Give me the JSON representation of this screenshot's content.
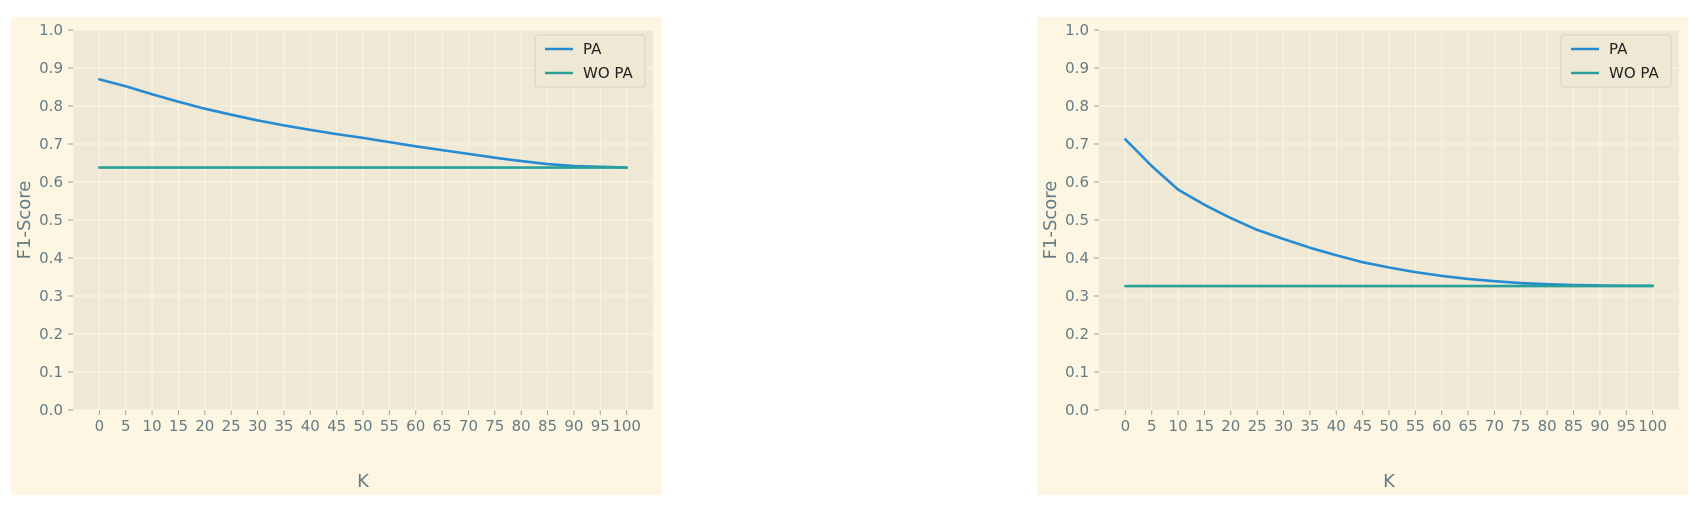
{
  "chart_data": [
    {
      "type": "line",
      "xlabel": "K",
      "ylabel": "F1-Score",
      "xlim": [
        -5,
        105
      ],
      "ylim": [
        0.0,
        1.0
      ],
      "xticks": [
        0,
        5,
        10,
        15,
        20,
        25,
        30,
        35,
        40,
        45,
        50,
        55,
        60,
        65,
        70,
        75,
        80,
        85,
        90,
        95,
        100
      ],
      "yticks": [
        "0.0",
        "0.1",
        "0.2",
        "0.3",
        "0.4",
        "0.5",
        "0.6",
        "0.7",
        "0.8",
        "0.9",
        "1.0"
      ],
      "grid": true,
      "legend_position": "top-right",
      "x": [
        0,
        5,
        10,
        15,
        20,
        25,
        30,
        35,
        40,
        45,
        50,
        55,
        60,
        65,
        70,
        75,
        80,
        85,
        90,
        95,
        100
      ],
      "series": [
        {
          "name": "PA",
          "color": "#268bd2",
          "values": [
            0.87,
            0.852,
            0.831,
            0.811,
            0.793,
            0.777,
            0.762,
            0.749,
            0.737,
            0.726,
            0.716,
            0.705,
            0.694,
            0.684,
            0.674,
            0.664,
            0.655,
            0.647,
            0.642,
            0.64,
            0.638
          ]
        },
        {
          "name": "WO PA",
          "color": "#2aa198",
          "values": [
            0.638,
            0.638,
            0.638,
            0.638,
            0.638,
            0.638,
            0.638,
            0.638,
            0.638,
            0.638,
            0.638,
            0.638,
            0.638,
            0.638,
            0.638,
            0.638,
            0.638,
            0.638,
            0.638,
            0.638,
            0.638
          ]
        }
      ]
    },
    {
      "type": "line",
      "xlabel": "K",
      "ylabel": "F1-Score",
      "xlim": [
        -5,
        105
      ],
      "ylim": [
        0.0,
        1.0
      ],
      "xticks": [
        0,
        5,
        10,
        15,
        20,
        25,
        30,
        35,
        40,
        45,
        50,
        55,
        60,
        65,
        70,
        75,
        80,
        85,
        90,
        95,
        100
      ],
      "yticks": [
        "0.0",
        "0.1",
        "0.2",
        "0.3",
        "0.4",
        "0.5",
        "0.6",
        "0.7",
        "0.8",
        "0.9",
        "1.0"
      ],
      "grid": true,
      "legend_position": "top-right",
      "x": [
        0,
        5,
        10,
        15,
        20,
        25,
        30,
        35,
        40,
        45,
        50,
        55,
        60,
        65,
        70,
        75,
        80,
        85,
        90,
        95,
        100
      ],
      "series": [
        {
          "name": "PA",
          "color": "#268bd2",
          "values": [
            0.712,
            0.642,
            0.58,
            0.54,
            0.505,
            0.474,
            0.45,
            0.427,
            0.407,
            0.389,
            0.375,
            0.363,
            0.353,
            0.345,
            0.339,
            0.334,
            0.331,
            0.329,
            0.328,
            0.327,
            0.327
          ]
        },
        {
          "name": "WO PA",
          "color": "#2aa198",
          "values": [
            0.326,
            0.326,
            0.326,
            0.326,
            0.326,
            0.326,
            0.326,
            0.326,
            0.326,
            0.326,
            0.326,
            0.326,
            0.326,
            0.326,
            0.326,
            0.326,
            0.326,
            0.326,
            0.326,
            0.326,
            0.326
          ]
        }
      ]
    }
  ]
}
